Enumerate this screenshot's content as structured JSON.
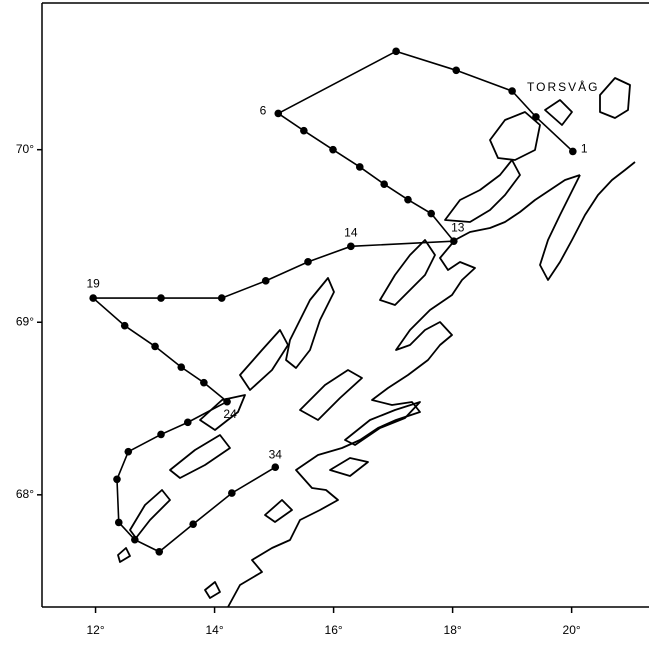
{
  "chart_data": {
    "type": "line",
    "x": [
      20.02,
      19.4,
      19.0,
      18.06,
      17.05,
      15.07,
      15.5,
      15.99,
      16.44,
      16.85,
      17.25,
      17.64,
      18.02,
      16.29,
      15.57,
      14.86,
      14.12,
      13.1,
      11.96,
      12.49,
      13.0,
      13.44,
      13.82,
      14.21,
      13.55,
      13.1,
      12.55,
      12.36,
      12.39,
      12.66,
      13.07,
      13.64,
      14.29,
      15.02
    ],
    "values": [
      69.99,
      70.19,
      70.34,
      70.46,
      70.57,
      70.21,
      70.11,
      70.0,
      69.9,
      69.8,
      69.71,
      69.63,
      69.47,
      69.44,
      69.35,
      69.24,
      69.14,
      69.14,
      69.14,
      68.98,
      68.86,
      68.74,
      68.65,
      68.54,
      68.42,
      68.35,
      68.25,
      68.09,
      67.84,
      67.74,
      67.67,
      67.83,
      68.01,
      68.16
    ],
    "point_labels": [
      "1",
      null,
      null,
      null,
      null,
      "6",
      null,
      null,
      null,
      null,
      null,
      null,
      "13",
      "14",
      null,
      null,
      null,
      null,
      "19",
      null,
      null,
      null,
      null,
      "24",
      null,
      null,
      null,
      null,
      null,
      null,
      null,
      null,
      null,
      "34"
    ],
    "color": "#000000",
    "xlim": [
      11.1,
      21.3
    ],
    "ylim": [
      67.35,
      70.85
    ],
    "xticks": [
      {
        "value": 12,
        "label": "12°"
      },
      {
        "value": 14,
        "label": "14°"
      },
      {
        "value": 16,
        "label": "16°"
      },
      {
        "value": 18,
        "label": "18°"
      },
      {
        "value": 20,
        "label": "20°"
      }
    ],
    "yticks": [
      {
        "value": 68,
        "label": "68°"
      },
      {
        "value": 69,
        "label": "69°"
      },
      {
        "value": 70,
        "label": "70°"
      }
    ],
    "annotation": "TORSVÅG"
  }
}
